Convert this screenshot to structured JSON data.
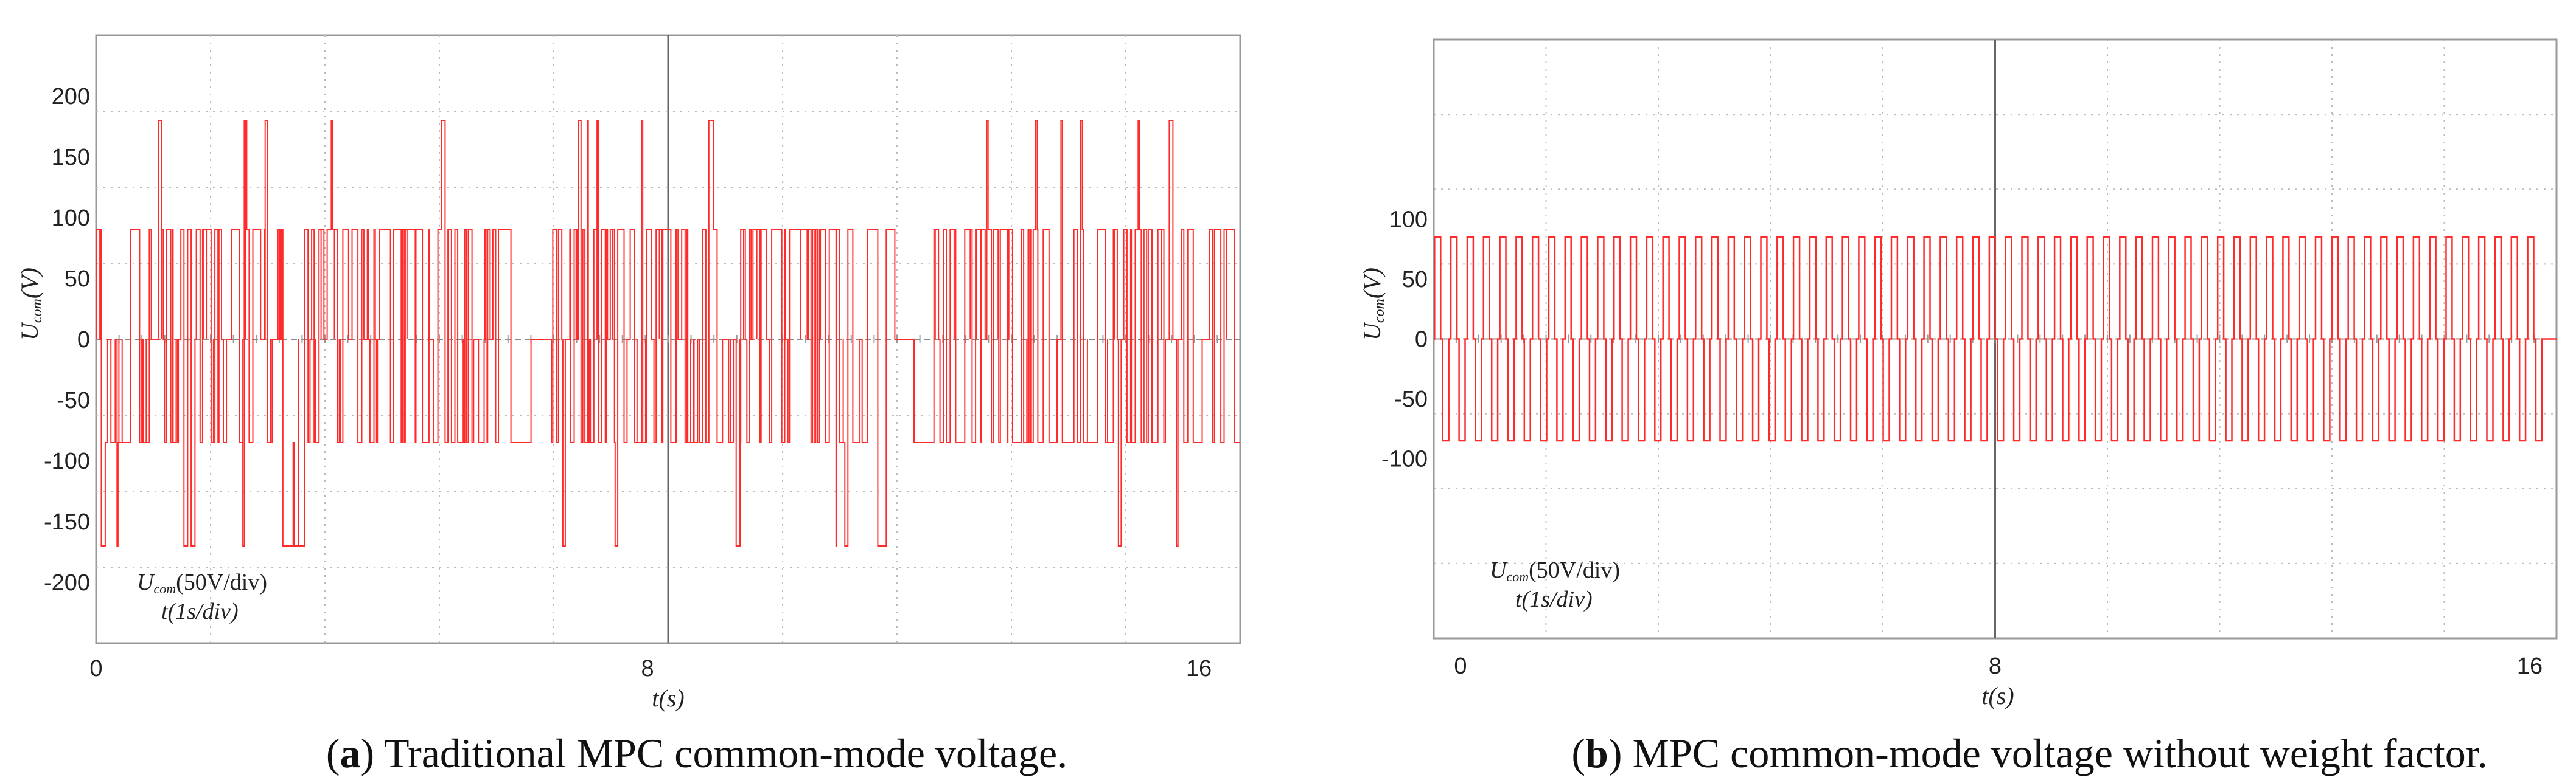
{
  "chart_data": [
    {
      "id": "a",
      "type": "line",
      "caption_label": "a",
      "caption_text": " Traditional MPC common-mode voltage.",
      "ylabel_main": "U",
      "ylabel_sub": "com",
      "ylabel_unit": "(V)",
      "xlabel": "t(s)",
      "xlim": [
        0,
        16.6
      ],
      "ylim": [
        -250,
        250
      ],
      "y_ticks": [
        200,
        150,
        100,
        50,
        0,
        -50,
        -100,
        -150,
        -200
      ],
      "x_ticks": [
        0,
        8,
        16
      ],
      "annotation_line1_main": "U",
      "annotation_line1_sub": "com",
      "annotation_line1_rest": "(50V/div)",
      "annotation_line2": "t(1s/div)",
      "series": [
        {
          "name": "Ucom",
          "color": "#ff2a2a",
          "levels": [
            -170,
            -85,
            0,
            90,
            180
          ],
          "description_values": {
            "max": 180,
            "min": -170,
            "upper_band": 90,
            "lower_band": -85
          }
        }
      ]
    },
    {
      "id": "b",
      "type": "line",
      "caption_label": "b",
      "caption_text": " MPC common-mode voltage without weight factor.",
      "ylabel_main": "U",
      "ylabel_sub": "com",
      "ylabel_unit": "(V)",
      "xlabel": "t(s)",
      "xlim": [
        -0.4,
        16.4
      ],
      "ylim": [
        -250,
        250
      ],
      "y_ticks": [
        100,
        50,
        0,
        -50,
        -100
      ],
      "x_ticks": [
        0,
        8,
        16
      ],
      "annotation_line1_main": "U",
      "annotation_line1_sub": "com",
      "annotation_line1_rest": "(50V/div)",
      "annotation_line2": "t(1s/div)",
      "series": [
        {
          "name": "Ucom",
          "color": "#ff2a2a",
          "levels": [
            -85,
            0,
            85
          ],
          "pulse_count": 68
        }
      ]
    }
  ]
}
